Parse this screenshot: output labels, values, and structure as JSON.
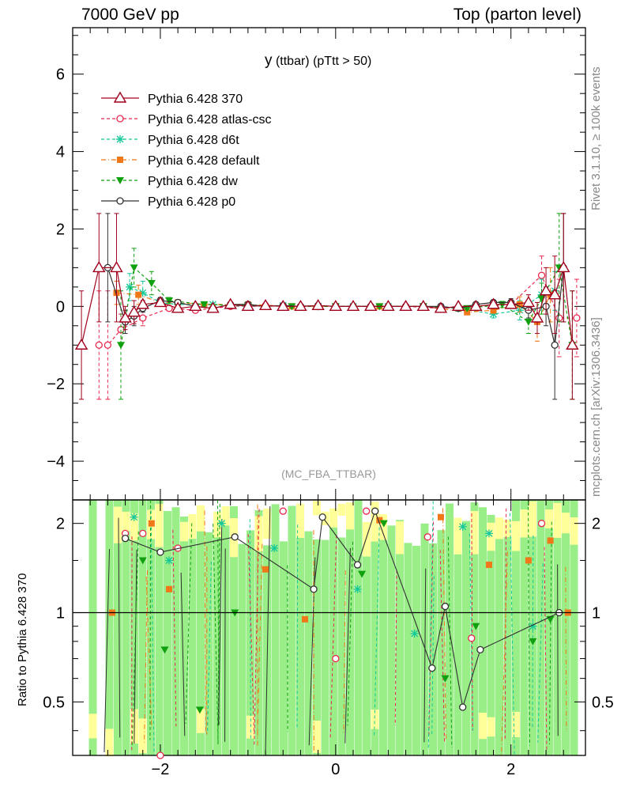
{
  "header": {
    "left": "7000 GeV pp",
    "right": "Top (parton level)"
  },
  "side_labels": {
    "rivet": "Rivet 3.1.10, ≥ 100k events",
    "mcplots": "mcplots.cern.ch [arXiv:1306.3436]"
  },
  "ratio_ylabel": "Ratio to Pythia 6.428 370",
  "chart_data": [
    {
      "type": "scatter",
      "title_main": "y",
      "title_rest": " (ttbar)  (pTtt > 50)",
      "watermark": "(MC_FBA_TTBAR)",
      "xlim": [
        -3.0,
        2.85
      ],
      "ylim": [
        -5.0,
        7.2
      ],
      "xticks": [
        -2,
        0,
        2
      ],
      "xtick_labels": [
        "−2",
        "0",
        "2"
      ],
      "yticks": [
        -4,
        -2,
        0,
        2,
        4,
        6
      ],
      "ytick_labels": [
        "−4",
        "−2",
        "0",
        "2",
        "4",
        "6"
      ],
      "legend_position": "top-left",
      "series": [
        {
          "name": "Pythia 6.428 370",
          "color": "#a0001c",
          "dash": "",
          "marker": "triangle-open",
          "x": [
            -2.9,
            -2.7,
            -2.5,
            -2.4,
            -2.3,
            -2.2,
            -2.0,
            -1.8,
            -1.6,
            -1.4,
            -1.2,
            -1.0,
            -0.8,
            -0.6,
            -0.4,
            -0.2,
            0.0,
            0.2,
            0.4,
            0.6,
            0.8,
            1.0,
            1.2,
            1.4,
            1.6,
            1.8,
            2.0,
            2.2,
            2.3,
            2.4,
            2.5,
            2.6,
            2.7
          ],
          "y": [
            -1.0,
            1.0,
            1.0,
            -0.3,
            -0.15,
            0.05,
            0.1,
            -0.05,
            0.0,
            -0.05,
            0.05,
            0.0,
            0.02,
            0.0,
            0.0,
            0.02,
            0.0,
            0.0,
            0.0,
            0.0,
            0.0,
            0.0,
            -0.05,
            0.0,
            0.0,
            0.05,
            0.05,
            0.1,
            -0.3,
            0.4,
            0.3,
            1.0,
            -1.0
          ],
          "err": [
            1.4,
            1.4,
            1.4,
            0.3,
            0.3,
            0.1,
            0.08,
            0.05,
            0.04,
            0.04,
            0.03,
            0.03,
            0.03,
            0.03,
            0.03,
            0.03,
            0.03,
            0.03,
            0.03,
            0.03,
            0.03,
            0.03,
            0.04,
            0.04,
            0.05,
            0.05,
            0.1,
            0.2,
            0.4,
            0.6,
            1.0,
            1.4,
            1.4
          ]
        },
        {
          "name": "Pythia 6.428 atlas-csc",
          "color": "#e8284e",
          "dash": "4,3",
          "marker": "circle-open",
          "x": [
            -2.7,
            -2.6,
            -2.45,
            -2.2,
            -1.9,
            -1.6,
            -1.2,
            -0.8,
            -0.4,
            0.0,
            0.4,
            0.8,
            1.2,
            1.6,
            2.0,
            2.35,
            2.55,
            2.75
          ],
          "y": [
            -1.0,
            -1.0,
            -0.6,
            -0.3,
            -0.05,
            -0.1,
            0.0,
            0.02,
            0.0,
            0.0,
            0.0,
            0.0,
            -0.05,
            0.0,
            0.05,
            0.8,
            -0.3,
            -0.3
          ],
          "err": [
            1.4,
            1.4,
            0.4,
            0.2,
            0.06,
            0.05,
            0.03,
            0.03,
            0.03,
            0.03,
            0.03,
            0.03,
            0.04,
            0.05,
            0.1,
            0.5,
            1.0,
            1.0
          ]
        },
        {
          "name": "Pythia 6.428 d6t",
          "color": "#14c89a",
          "dash": "4,3",
          "marker": "star",
          "x": [
            -2.35,
            -2.2,
            -2.0,
            -1.8,
            -1.4,
            -1.0,
            -0.6,
            -0.2,
            0.2,
            0.6,
            1.0,
            1.4,
            1.8,
            2.1,
            2.35,
            2.5
          ],
          "y": [
            0.5,
            0.35,
            0.1,
            0.05,
            0.05,
            0.0,
            0.02,
            0.0,
            0.0,
            0.0,
            0.0,
            -0.05,
            -0.2,
            -0.1,
            0.3,
            0.4
          ],
          "err": [
            0.35,
            0.3,
            0.1,
            0.06,
            0.04,
            0.03,
            0.03,
            0.03,
            0.03,
            0.03,
            0.03,
            0.04,
            0.1,
            0.25,
            0.4,
            0.5
          ]
        },
        {
          "name": "Pythia 6.428 default",
          "color": "#f07818",
          "dash": "6,3,1,3",
          "marker": "square",
          "x": [
            -2.5,
            -2.25,
            -2.0,
            -1.8,
            -1.5,
            -1.0,
            -0.5,
            0.0,
            0.5,
            1.0,
            1.5,
            1.8,
            2.1,
            2.3,
            2.45
          ],
          "y": [
            0.35,
            0.3,
            0.1,
            0.1,
            0.05,
            0.05,
            0.0,
            0.0,
            0.0,
            0.0,
            -0.15,
            -0.1,
            0.05,
            -0.4,
            0.3
          ],
          "err": [
            0.3,
            0.25,
            0.1,
            0.06,
            0.04,
            0.03,
            0.03,
            0.03,
            0.03,
            0.03,
            0.05,
            0.08,
            0.2,
            0.5,
            0.7
          ]
        },
        {
          "name": "Pythia 6.428 dw",
          "color": "#10a010",
          "dash": "4,3",
          "marker": "triangle-down",
          "x": [
            -2.45,
            -2.3,
            -2.1,
            -1.9,
            -1.5,
            -1.0,
            -0.5,
            0.0,
            0.5,
            1.0,
            1.5,
            1.9,
            2.2,
            2.35,
            2.55,
            2.7
          ],
          "y": [
            -1.0,
            1.0,
            0.6,
            0.15,
            0.05,
            0.02,
            0.0,
            0.0,
            0.0,
            0.0,
            -0.05,
            0.05,
            -0.4,
            0.2,
            1.0,
            -1.0
          ],
          "err": [
            1.4,
            0.5,
            0.3,
            0.08,
            0.04,
            0.03,
            0.03,
            0.03,
            0.03,
            0.03,
            0.04,
            0.08,
            0.3,
            0.4,
            1.4,
            1.4
          ]
        },
        {
          "name": "Pythia 6.428 p0",
          "color": "#303030",
          "dash": "",
          "marker": "circle-open",
          "x": [
            -2.6,
            -2.4,
            -2.3,
            -2.2,
            -2.0,
            -1.8,
            -1.6,
            -1.4,
            -1.2,
            -1.0,
            -0.8,
            -0.6,
            -0.4,
            -0.2,
            0.0,
            0.2,
            0.4,
            0.6,
            0.8,
            1.0,
            1.2,
            1.4,
            1.6,
            1.8,
            2.0,
            2.2,
            2.4,
            2.5,
            2.6
          ],
          "y": [
            1.0,
            -0.4,
            -0.25,
            -0.05,
            0.15,
            0.1,
            0.0,
            -0.05,
            0.05,
            0.05,
            0.0,
            0.02,
            0.0,
            0.02,
            0.0,
            0.0,
            0.0,
            0.0,
            0.0,
            0.0,
            0.0,
            -0.05,
            0.05,
            0.1,
            0.1,
            -0.1,
            0.0,
            -1.0,
            1.0
          ],
          "err": [
            1.4,
            0.3,
            0.25,
            0.1,
            0.08,
            0.05,
            0.04,
            0.04,
            0.03,
            0.03,
            0.03,
            0.03,
            0.03,
            0.03,
            0.03,
            0.03,
            0.03,
            0.03,
            0.03,
            0.03,
            0.04,
            0.04,
            0.05,
            0.06,
            0.1,
            0.2,
            0.5,
            1.4,
            1.4
          ]
        }
      ]
    },
    {
      "type": "scatter",
      "ylabel": "Ratio to Pythia 6.428 370",
      "yscale": "log",
      "ylim": [
        0.33,
        2.4
      ],
      "yticks": [
        0.5,
        1,
        2
      ],
      "ytick_labels": [
        "0.5",
        "1",
        "2"
      ],
      "reference_line": 1,
      "ratio_points": [
        {
          "series": "Pythia 6.428 atlas-csc",
          "x": [
            -2.4,
            -2.2,
            -2.0,
            -1.8,
            -0.6,
            0.0,
            0.35,
            1.05,
            1.55,
            2.35
          ],
          "y": [
            1.85,
            1.85,
            0.33,
            1.65,
            2.2,
            0.7,
            2.2,
            1.8,
            0.82,
            2.0
          ]
        },
        {
          "series": "Pythia 6.428 d6t",
          "x": [
            -2.3,
            -1.9,
            -1.3,
            -0.7,
            0.25,
            0.9,
            1.45,
            1.75,
            2.25
          ],
          "y": [
            2.1,
            1.5,
            2.0,
            1.65,
            1.2,
            0.85,
            1.95,
            1.85,
            0.9
          ]
        },
        {
          "series": "Pythia 6.428 default",
          "x": [
            -2.55,
            -2.1,
            -1.9,
            -0.8,
            -0.35,
            0.5,
            1.2,
            1.75,
            2.2,
            2.45,
            2.65
          ],
          "y": [
            1.0,
            2.0,
            1.2,
            1.4,
            0.95,
            2.05,
            2.1,
            1.45,
            1.5,
            1.75,
            1.0
          ]
        },
        {
          "series": "Pythia 6.428 dw",
          "x": [
            -2.2,
            -1.95,
            -1.55,
            -1.15,
            0.3,
            0.55,
            1.25,
            1.6,
            2.25,
            2.45
          ],
          "y": [
            1.5,
            0.75,
            0.47,
            1.0,
            1.35,
            2.0,
            0.6,
            0.9,
            0.8,
            0.95
          ]
        },
        {
          "series": "Pythia 6.428 p0",
          "x": [
            -2.4,
            -2.0,
            -1.15,
            -0.25,
            -0.15,
            0.25,
            0.45,
            1.1,
            1.25,
            1.45,
            1.65,
            2.55
          ],
          "y": [
            1.78,
            1.6,
            1.8,
            1.2,
            2.1,
            1.45,
            2.2,
            0.65,
            1.05,
            0.48,
            0.75,
            1.0
          ]
        }
      ]
    }
  ]
}
